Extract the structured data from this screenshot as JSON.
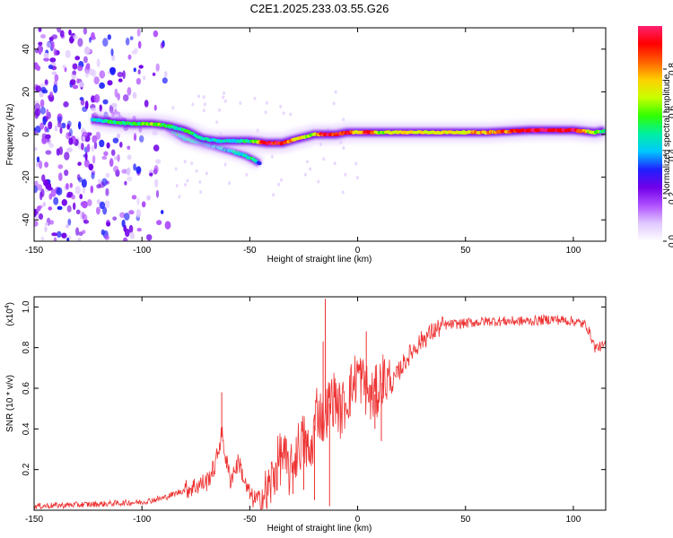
{
  "chart_data": [
    {
      "type": "heatmap",
      "title": "C2E1.2025.233.03.55.G26",
      "xlabel": "Height of straight line (km)",
      "ylabel": "Frequency (Hz)",
      "xlim": [
        -150,
        115
      ],
      "ylim": [
        -50,
        50
      ],
      "xticks": [
        -150,
        -100,
        -50,
        0,
        50,
        100
      ],
      "yticks": [
        -40,
        -20,
        0,
        20,
        40
      ],
      "colorbar": {
        "label": "Normalized spectral amplitude",
        "range": [
          0,
          1
        ],
        "ticks": [
          "0.0",
          "0.2",
          "0.4",
          "0.6",
          "0.8"
        ],
        "tick_values": [
          0,
          0.2,
          0.4,
          0.6,
          0.8
        ],
        "colors": [
          "#ffffff",
          "#e0c8ff",
          "#b050ff",
          "#7000e8",
          "#2020ff",
          "#00c8ff",
          "#00f0a0",
          "#30ff00",
          "#c8ff00",
          "#ffd000",
          "#ff6000",
          "#ff0000",
          "#ff2070"
        ]
      },
      "ridge": {
        "x": [
          -123,
          -115,
          -105,
          -95,
          -88,
          -80,
          -72,
          -65,
          -58,
          -50,
          -42,
          -35,
          -28,
          -20,
          -15,
          -10,
          -5,
          0,
          5,
          10,
          20,
          40,
          60,
          80,
          100,
          110,
          115
        ],
        "y": [
          7,
          6,
          5,
          5,
          4,
          2,
          -2,
          -3,
          -3,
          -3,
          -4,
          -4,
          -2,
          0,
          0,
          0,
          1,
          1,
          1,
          1,
          1,
          1,
          1,
          2,
          2,
          1,
          2
        ],
        "amplitude": [
          0.45,
          0.5,
          0.55,
          0.6,
          0.55,
          0.5,
          0.5,
          0.45,
          0.45,
          0.5,
          0.95,
          0.9,
          0.7,
          0.65,
          0.95,
          0.9,
          0.95,
          0.7,
          0.95,
          0.6,
          0.75,
          0.7,
          0.75,
          0.95,
          0.95,
          0.6,
          0.55
        ]
      },
      "branch": {
        "x": [
          -88,
          -80,
          -72,
          -65,
          -58,
          -52,
          -48,
          -45
        ],
        "y": [
          3,
          -2,
          -4,
          -6,
          -8,
          -10,
          -12,
          -14
        ],
        "amplitude": [
          0.5,
          0.5,
          0.45,
          0.4,
          0.45,
          0.5,
          0.5,
          0.3
        ]
      }
    },
    {
      "type": "line",
      "title": "",
      "xlabel": "Height of straight line (km)",
      "ylabel": "SNR (10 * v/v)",
      "y_exponent_label": "(x10",
      "y_exponent_power": "4",
      "y_exponent_close": ")",
      "xlim": [
        -150,
        115
      ],
      "ylim": [
        0,
        1.05
      ],
      "xticks": [
        -150,
        -100,
        -50,
        0,
        50,
        100
      ],
      "yticks": [
        0.2,
        0.4,
        0.6,
        0.8,
        1.0
      ],
      "ytick_labels": [
        "0.2",
        "0.4",
        "0.6",
        "0.8",
        "1.0"
      ],
      "color": "#ee3333",
      "x": [
        -150,
        -120,
        -100,
        -90,
        -80,
        -75,
        -70,
        -66,
        -63,
        -61,
        -59,
        -57,
        -55,
        -52,
        -49,
        -46,
        -42,
        -38,
        -35,
        -33,
        -31,
        -28,
        -25,
        -22,
        -19,
        -16,
        -14,
        -12,
        -10,
        -8,
        -5,
        -2,
        0,
        3,
        6,
        9,
        12,
        16,
        20,
        25,
        30,
        35,
        40,
        50,
        60,
        70,
        80,
        90,
        100,
        106,
        108,
        110,
        115
      ],
      "y": [
        0.02,
        0.03,
        0.04,
        0.06,
        0.1,
        0.12,
        0.14,
        0.22,
        0.38,
        0.25,
        0.15,
        0.2,
        0.24,
        0.12,
        0.06,
        0.05,
        0.08,
        0.2,
        0.28,
        0.22,
        0.18,
        0.3,
        0.35,
        0.25,
        0.5,
        0.45,
        0.5,
        0.55,
        0.55,
        0.48,
        0.55,
        0.62,
        0.68,
        0.62,
        0.55,
        0.58,
        0.65,
        0.62,
        0.7,
        0.78,
        0.84,
        0.88,
        0.91,
        0.92,
        0.93,
        0.93,
        0.93,
        0.94,
        0.93,
        0.91,
        0.86,
        0.8,
        0.81
      ],
      "spikes": [
        {
          "x": -63,
          "y": 0.58
        },
        {
          "x": -16,
          "y": 0.83
        },
        {
          "x": -15,
          "y": 1.04
        },
        {
          "x": -13,
          "y": 0.02
        },
        {
          "x": -20,
          "y": 0.05
        },
        {
          "x": -25,
          "y": 0.1
        },
        {
          "x": -30,
          "y": 0.08
        },
        {
          "x": 4,
          "y": 0.88
        },
        {
          "x": 8,
          "y": 0.4
        },
        {
          "x": 11,
          "y": 0.34
        }
      ]
    }
  ]
}
